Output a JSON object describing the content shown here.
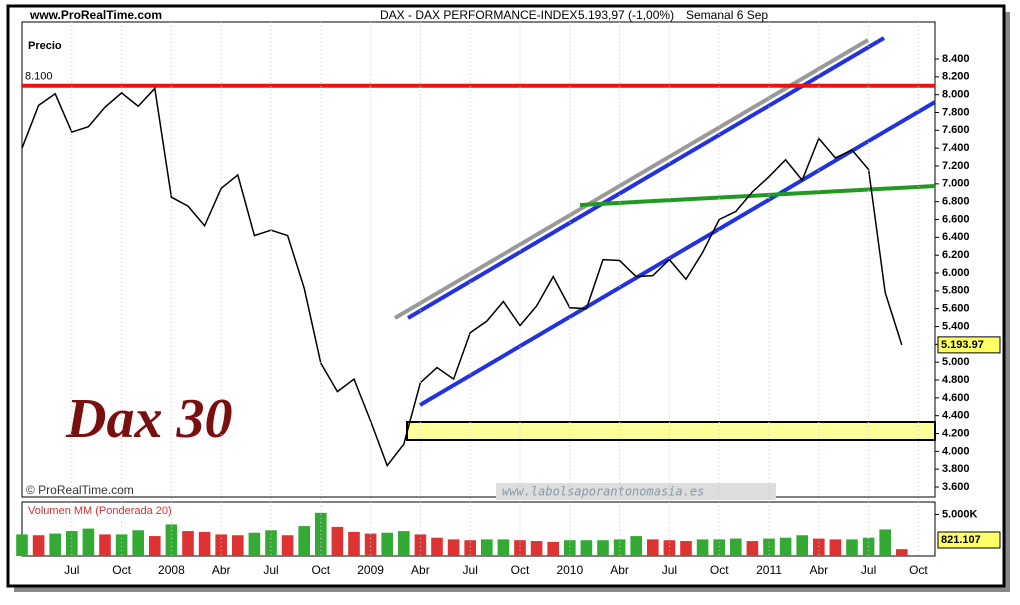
{
  "header": {
    "site": "www.ProRealTime.com",
    "instrument": "DAX - DAX PERFORMANCE-INDEX",
    "quote": "5.193,97 (-1,00%)",
    "period": "Semanal  6 Sep",
    "watermark": "Dax 30",
    "copyright": "© ProRealTime.com",
    "website": "www.labolsaporantonomasia.es"
  },
  "chart_data": [
    {
      "type": "line",
      "title": "Precio",
      "categories": [
        null,
        null,
        null,
        "Jul",
        null,
        null,
        "Oct",
        null,
        null,
        "2008",
        null,
        null,
        "Abr",
        null,
        null,
        "Jul",
        null,
        null,
        "Oct",
        null,
        null,
        "2009",
        null,
        null,
        "Abr",
        null,
        null,
        "Jul",
        null,
        null,
        "Oct",
        null,
        null,
        "2010",
        null,
        null,
        "Abr",
        null,
        null,
        "Jul",
        null,
        null,
        "Oct",
        null,
        null,
        "2011",
        null,
        null,
        "Abr",
        null,
        null,
        "Jul",
        null,
        null,
        "Oct"
      ],
      "series": [
        {
          "color": "#000000",
          "values": [
            7400,
            7880,
            8010,
            7580,
            7640,
            7860,
            8020,
            7870,
            8070,
            6850,
            6750,
            6530,
            6950,
            7100,
            6420,
            6480,
            6420,
            5830,
            4990,
            4670,
            4810,
            4340,
            3840,
            4080,
            4770,
            4940,
            4810,
            5330,
            5460,
            5680,
            5410,
            5630,
            5960,
            5610,
            5600,
            6150,
            6140,
            5960,
            5970,
            6150,
            5930,
            6230,
            6600,
            6690,
            6910,
            7080,
            7270,
            7040,
            7510,
            7290,
            7380,
            7160,
            5780,
            5193.97,
            null
          ],
          "value_labels": [
            null,
            null,
            null,
            null,
            null,
            null,
            null,
            null,
            null,
            null,
            null,
            null,
            null,
            null,
            null,
            null,
            null,
            null,
            null,
            null,
            null,
            null,
            null,
            null,
            null,
            null,
            null,
            null,
            null,
            null,
            null,
            null,
            null,
            null,
            null,
            null,
            null,
            null,
            null,
            null,
            null,
            null,
            null,
            null,
            null,
            null,
            null,
            null,
            null,
            null,
            null,
            null,
            null,
            "5.193.97",
            null
          ]
        }
      ],
      "ylim": [
        3488,
        8815
      ],
      "yticks": [
        {
          "value": 3600,
          "label": "3.600"
        },
        {
          "value": 3800,
          "label": "3.800"
        },
        {
          "value": 4000,
          "label": "4.000"
        },
        {
          "value": 4200,
          "label": "4.200"
        },
        {
          "value": 4400,
          "label": "4.400"
        },
        {
          "value": 4600,
          "label": "4.600"
        },
        {
          "value": 4800,
          "label": "4.800"
        },
        {
          "value": 5000,
          "label": "5.000"
        },
        {
          "value": 5200,
          "label": "5.200"
        },
        {
          "value": 5400,
          "label": "5.400"
        },
        {
          "value": 5600,
          "label": "5.600"
        },
        {
          "value": 5800,
          "label": "5.800"
        },
        {
          "value": 6000,
          "label": "6.000"
        },
        {
          "value": 6200,
          "label": "6.200"
        },
        {
          "value": 6400,
          "label": "6.400"
        },
        {
          "value": 6600,
          "label": "6.600"
        },
        {
          "value": 6800,
          "label": "6.800"
        },
        {
          "value": 7000,
          "label": "7.000"
        },
        {
          "value": 7200,
          "label": "7.200"
        },
        {
          "value": 7400,
          "label": "7.400"
        },
        {
          "value": 7600,
          "label": "7.600"
        },
        {
          "value": 7800,
          "label": "7.800"
        },
        {
          "value": 8000,
          "label": "8.000"
        },
        {
          "value": 8200,
          "label": "8.200"
        },
        {
          "value": 8400,
          "label": "8.400"
        }
      ],
      "hlines": [
        {
          "value": 8100,
          "label": "8.100",
          "color": "#ee1111"
        }
      ]
    },
    {
      "type": "bar",
      "title": "Volumen MM (Ponderada 20)",
      "categories": [
        null,
        null,
        null,
        "Jul",
        null,
        null,
        "Oct",
        null,
        null,
        "2008",
        null,
        null,
        "Abr",
        null,
        null,
        "Jul",
        null,
        null,
        "Oct",
        null,
        null,
        "2009",
        null,
        null,
        "Abr",
        null,
        null,
        "Jul",
        null,
        null,
        "Oct",
        null,
        null,
        "2010",
        null,
        null,
        "Abr",
        null,
        null,
        "Jul",
        null,
        null,
        "Oct",
        null,
        null,
        "2011",
        null,
        null,
        "Abr",
        null,
        null,
        "Jul",
        null,
        null,
        "Oct"
      ],
      "values": [
        2600000,
        2500000,
        2700000,
        3000000,
        3300000,
        2600000,
        2600000,
        3100000,
        2400000,
        3800000,
        3000000,
        2900000,
        2600000,
        2500000,
        2800000,
        3100000,
        2500000,
        3600000,
        5200000,
        3500000,
        2900000,
        2700000,
        2800000,
        3000000,
        2600000,
        2200000,
        2000000,
        1900000,
        2000000,
        2000000,
        1900000,
        1800000,
        1700000,
        1900000,
        1900000,
        1900000,
        2000000,
        2400000,
        2000000,
        1900000,
        1800000,
        2000000,
        2000000,
        2100000,
        1800000,
        2100000,
        2200000,
        2500000,
        2100000,
        2000000,
        2000000,
        2200000,
        3200000,
        821107,
        null
      ],
      "value_labels": [
        null,
        null,
        null,
        null,
        null,
        null,
        null,
        null,
        null,
        null,
        null,
        null,
        null,
        null,
        null,
        null,
        null,
        null,
        null,
        null,
        null,
        null,
        null,
        null,
        null,
        null,
        null,
        null,
        null,
        null,
        null,
        null,
        null,
        null,
        null,
        null,
        null,
        null,
        null,
        null,
        null,
        null,
        null,
        null,
        null,
        null,
        null,
        null,
        null,
        null,
        null,
        null,
        null,
        "821.107",
        null
      ],
      "up_color": "#33aa33",
      "down_color": "#dd3333",
      "ylim": [
        0,
        6500000
      ],
      "yticks": [
        {
          "value": 5000000,
          "label": "5.000K"
        }
      ]
    }
  ]
}
